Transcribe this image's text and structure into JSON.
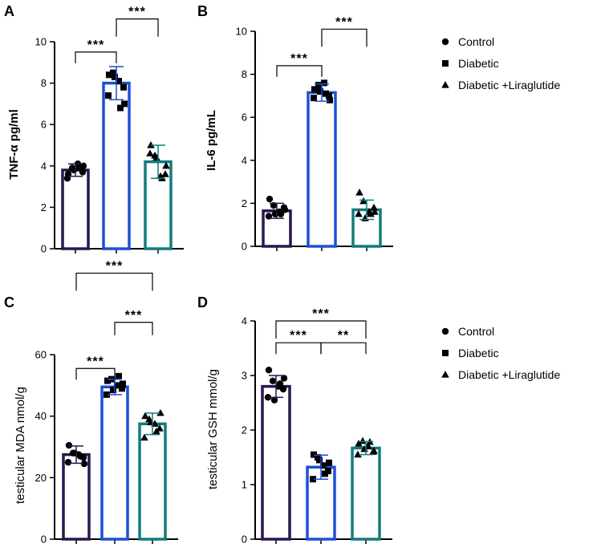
{
  "groups": [
    {
      "name": "Control",
      "color": "#2a1650",
      "marker": "circle"
    },
    {
      "name": "Diabetic",
      "color": "#1e4fd6",
      "marker": "square"
    },
    {
      "name": "Diabetic +Liraglutide",
      "color": "#137b7b",
      "marker": "triangle"
    }
  ],
  "legend": [
    {
      "label": "Control",
      "marker": "circle"
    },
    {
      "label": "Diabetic",
      "marker": "square"
    },
    {
      "label": "Diabetic +Liraglutide",
      "marker": "triangle"
    }
  ],
  "chart_data": [
    {
      "panel": "A",
      "type": "bar",
      "ylabel": "TNF-α pg/ml",
      "ylim": [
        0,
        10
      ],
      "yticks": [
        0,
        2,
        4,
        6,
        8,
        10
      ],
      "categories": [
        "Control",
        "Diabetic",
        "Diabetic +Liraglutide"
      ],
      "values": [
        3.8,
        8.0,
        4.2
      ],
      "errors": [
        0.3,
        0.8,
        0.8
      ],
      "points": [
        [
          3.6,
          3.9,
          4.1,
          3.7,
          3.4,
          3.8,
          3.9,
          4.0
        ],
        [
          8.4,
          8.5,
          8.1,
          7.8,
          7.4,
          8.3,
          6.8,
          7.0
        ],
        [
          5.0,
          4.5,
          3.5,
          3.6,
          4.6,
          4.4,
          3.4,
          4.0
        ]
      ],
      "annotations": [
        {
          "from": 0,
          "to": 1,
          "label": "***",
          "level": 9.5
        },
        {
          "from": 1,
          "to": 2,
          "label": "***",
          "level": 11.1
        }
      ]
    },
    {
      "panel": "B",
      "type": "bar",
      "ylabel": "IL-6 pg/mL",
      "ylim": [
        0,
        10
      ],
      "yticks": [
        0,
        2,
        4,
        6,
        8,
        10
      ],
      "categories": [
        "Control",
        "Diabetic",
        "Diabetic +Liraglutide"
      ],
      "values": [
        1.65,
        7.15,
        1.7
      ],
      "errors": [
        0.35,
        0.4,
        0.45
      ],
      "points": [
        [
          2.2,
          1.9,
          1.6,
          1.8,
          1.4,
          1.5,
          1.5,
          1.7
        ],
        [
          7.3,
          7.5,
          7.6,
          7.0,
          6.9,
          7.2,
          7.1,
          6.8
        ],
        [
          2.5,
          2.1,
          1.6,
          1.8,
          1.5,
          1.3,
          1.5,
          1.6
        ]
      ],
      "annotations": [
        {
          "from": 0,
          "to": 1,
          "label": "***",
          "level": 8.4
        },
        {
          "from": 1,
          "to": 2,
          "label": "***",
          "level": 10.1
        }
      ]
    },
    {
      "panel": "C",
      "type": "bar",
      "ylabel": "testicular MDA nmol/g",
      "ylim": [
        0,
        60
      ],
      "yticks": [
        0,
        20,
        40,
        60
      ],
      "categories": [
        "Control",
        "Diabetic",
        "Diabetic +Liraglutide"
      ],
      "values": [
        27.5,
        49.5,
        37.5
      ],
      "errors": [
        2.8,
        2.5,
        3.5
      ],
      "points": [
        [
          30.5,
          28.0,
          27.5,
          26.5,
          25.0,
          28.0,
          27.0,
          24.5
        ],
        [
          51.5,
          52.0,
          50.0,
          49.0,
          47.0,
          48.5,
          53.0,
          50.5
        ],
        [
          40.0,
          39.0,
          37.5,
          36.0,
          33.0,
          38.0,
          35.0,
          41.0
        ]
      ],
      "annotations": [
        {
          "from": 0,
          "to": 1,
          "label": "***",
          "level": 55.5
        },
        {
          "from": 1,
          "to": 2,
          "label": "***",
          "level": 70.5
        },
        {
          "from": 0,
          "to": 2,
          "label": "***",
          "level": 86.5
        }
      ]
    },
    {
      "panel": "D",
      "type": "bar",
      "ylabel": "testicular GSH mmol/g",
      "ylim": [
        0,
        4
      ],
      "yticks": [
        0,
        1,
        2,
        3,
        4
      ],
      "categories": [
        "Control",
        "Diabetic",
        "Diabetic +Liraglutide"
      ],
      "values": [
        2.8,
        1.32,
        1.67
      ],
      "errors": [
        0.2,
        0.22,
        0.12
      ],
      "points": [
        [
          3.1,
          2.9,
          2.8,
          2.75,
          2.6,
          2.55,
          2.85,
          2.95
        ],
        [
          1.55,
          1.5,
          1.35,
          1.25,
          1.1,
          1.45,
          1.2,
          1.4
        ],
        [
          1.75,
          1.8,
          1.7,
          1.6,
          1.55,
          1.65,
          1.78,
          1.62
        ]
      ],
      "annotations": [
        {
          "from": 0,
          "to": 1,
          "label": "***",
          "level": 3.6
        },
        {
          "from": 1,
          "to": 2,
          "label": "**",
          "level": 3.6
        },
        {
          "from": 0,
          "to": 2,
          "label": "***",
          "level": 4.0
        }
      ]
    }
  ]
}
